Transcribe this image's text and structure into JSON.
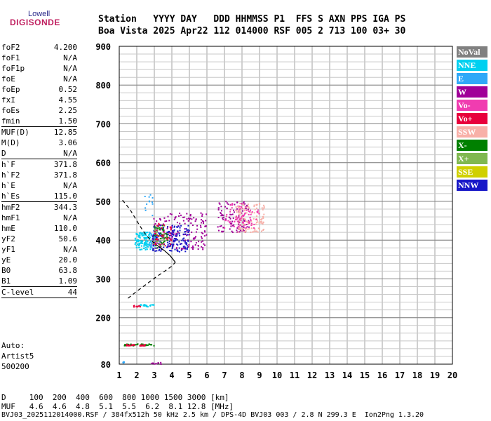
{
  "logo": {
    "top_text": "Lowell",
    "main_text": "DIGISONDE"
  },
  "header": {
    "line1": "Station   YYYY DAY   DDD HHMMSS P1  FFS S AXN PPS IGA PS",
    "line2": "Boa Vista 2025 Apr22 112 014000 RSF 005 2 713 100 03+ 30"
  },
  "params": [
    {
      "label": "foF2",
      "value": "4.200"
    },
    {
      "label": "foF1",
      "value": "N/A"
    },
    {
      "label": "foF1p",
      "value": "N/A"
    },
    {
      "label": "foE",
      "value": "N/A"
    },
    {
      "label": "foEp",
      "value": "0.52"
    },
    {
      "label": "fxI",
      "value": "4.55"
    },
    {
      "label": "foEs",
      "value": "2.25"
    },
    {
      "label": "fmin",
      "value": "1.50",
      "rule": true
    },
    {
      "label": "MUF(D)",
      "value": "12.85"
    },
    {
      "label": "M(D)",
      "value": "3.06"
    },
    {
      "label": "D",
      "value": "N/A",
      "rule": true
    },
    {
      "label": "h`F",
      "value": "371.8"
    },
    {
      "label": "h`F2",
      "value": "371.8"
    },
    {
      "label": "h`E",
      "value": "N/A"
    },
    {
      "label": "h`Es",
      "value": "115.0",
      "rule": true
    },
    {
      "label": "hmF2",
      "value": "344.3"
    },
    {
      "label": "hmF1",
      "value": "N/A"
    },
    {
      "label": "hmE",
      "value": "110.0"
    },
    {
      "label": "yF2",
      "value": "50.6"
    },
    {
      "label": "yF1",
      "value": "N/A"
    },
    {
      "label": "yE",
      "value": "20.0"
    },
    {
      "label": "B0",
      "value": "63.8"
    },
    {
      "label": "B1",
      "value": "1.09",
      "rule": true
    },
    {
      "label": "C-level",
      "value": "44",
      "rule": true
    }
  ],
  "autoscale": {
    "line1": "Auto:",
    "line2": "Artist5",
    "line3": "500200"
  },
  "legend": [
    {
      "name": "NoVal",
      "color": "#808080"
    },
    {
      "name": "NNE",
      "color": "#00d0f0"
    },
    {
      "name": "E",
      "color": "#30a8f8"
    },
    {
      "name": "W",
      "color": "#a00098"
    },
    {
      "name": "Vo-",
      "color": "#f03cb0"
    },
    {
      "name": "Vo+",
      "color": "#e8003c"
    },
    {
      "name": "SSW",
      "color": "#f8b0a8"
    },
    {
      "name": "X-",
      "color": "#008000"
    },
    {
      "name": "X+",
      "color": "#80b850"
    },
    {
      "name": "SSE",
      "color": "#d0d000"
    },
    {
      "name": "NNW",
      "color": "#1818c8"
    }
  ],
  "footer": {
    "line1": "D     100  200  400  600  800 1000 1500 3000 [km]",
    "line2": "MUF   4.6  4.6  4.8  5.1  5.5  6.2  8.1 12.8 [MHz]",
    "line3": "BVJ03_2025112014000.RSF / 384fx512h 50 kHz 2.5 km / DPS-4D BVJ03 003 / 2.8 N 299.3 E  Ion2Png 1.3.20"
  },
  "chart_data": {
    "type": "scatter",
    "title": "",
    "xlabel": "",
    "ylabel": "",
    "xlim": [
      1,
      20
    ],
    "ylim": [
      80,
      900
    ],
    "x_ticks": [
      1,
      2,
      3,
      4,
      5,
      6,
      7,
      8,
      9,
      10,
      11,
      12,
      13,
      14,
      15,
      16,
      17,
      18,
      19,
      20
    ],
    "y_ticks": [
      80,
      200,
      300,
      400,
      500,
      600,
      700,
      800,
      900
    ],
    "grid": true,
    "ionogram_profile": [
      [
        1.5,
        250
      ],
      [
        2.0,
        268
      ],
      [
        2.6,
        288
      ],
      [
        3.1,
        305
      ],
      [
        3.6,
        320
      ],
      [
        4.0,
        333
      ],
      [
        4.2,
        343
      ],
      [
        3.9,
        360
      ],
      [
        3.6,
        372
      ],
      [
        3.3,
        382
      ],
      [
        3.0,
        392
      ],
      [
        2.7,
        405
      ],
      [
        2.5,
        415
      ],
      [
        2.3,
        428
      ],
      [
        2.0,
        450
      ],
      [
        1.6,
        480
      ],
      [
        1.1,
        508
      ]
    ],
    "echo_clusters": [
      {
        "mode": "NNE",
        "x": [
          1.9,
          2.8
        ],
        "y": [
          375,
          420
        ],
        "n": 120
      },
      {
        "mode": "E",
        "x": [
          2.7,
          3.2
        ],
        "y": [
          380,
          420
        ],
        "n": 40
      },
      {
        "mode": "W",
        "x": [
          2.9,
          6.0
        ],
        "y": [
          375,
          470
        ],
        "n": 170
      },
      {
        "mode": "NNW",
        "x": [
          2.9,
          5.0
        ],
        "y": [
          370,
          440
        ],
        "n": 160
      },
      {
        "mode": "X-",
        "x": [
          3.0,
          3.8
        ],
        "y": [
          380,
          440
        ],
        "n": 40
      },
      {
        "mode": "X+",
        "x": [
          2.8,
          3.6
        ],
        "y": [
          385,
          440
        ],
        "n": 25
      },
      {
        "mode": "Vo+",
        "x": [
          3.0,
          4.0
        ],
        "y": [
          385,
          445
        ],
        "n": 35
      },
      {
        "mode": "W",
        "x": [
          6.6,
          8.4
        ],
        "y": [
          420,
          500
        ],
        "n": 110
      },
      {
        "mode": "Vo-",
        "x": [
          7.0,
          8.2
        ],
        "y": [
          430,
          500
        ],
        "n": 50
      },
      {
        "mode": "SSW",
        "x": [
          7.6,
          9.3
        ],
        "y": [
          420,
          495
        ],
        "n": 120
      },
      {
        "mode": "Vo-",
        "x": [
          7.8,
          9.0
        ],
        "y": [
          430,
          480
        ],
        "n": 40
      },
      {
        "mode": "E",
        "x": [
          2.4,
          3.0
        ],
        "y": [
          460,
          530
        ],
        "n": 12
      },
      {
        "mode": "NNE",
        "x": [
          2.2,
          3.0
        ],
        "y": [
          228,
          234
        ],
        "n": 22
      },
      {
        "mode": "Vo+",
        "x": [
          1.8,
          2.2
        ],
        "y": [
          227,
          232
        ],
        "n": 12
      },
      {
        "mode": "X-",
        "x": [
          1.3,
          3.0
        ],
        "y": [
          127,
          132
        ],
        "n": 45
      },
      {
        "mode": "Vo+",
        "x": [
          1.3,
          2.5
        ],
        "y": [
          127,
          131
        ],
        "n": 25
      },
      {
        "mode": "E",
        "x": [
          1.2,
          1.3
        ],
        "y": [
          80,
          86
        ],
        "n": 6
      },
      {
        "mode": "W",
        "x": [
          2.8,
          3.9
        ],
        "y": [
          80,
          84
        ],
        "n": 10
      }
    ]
  }
}
